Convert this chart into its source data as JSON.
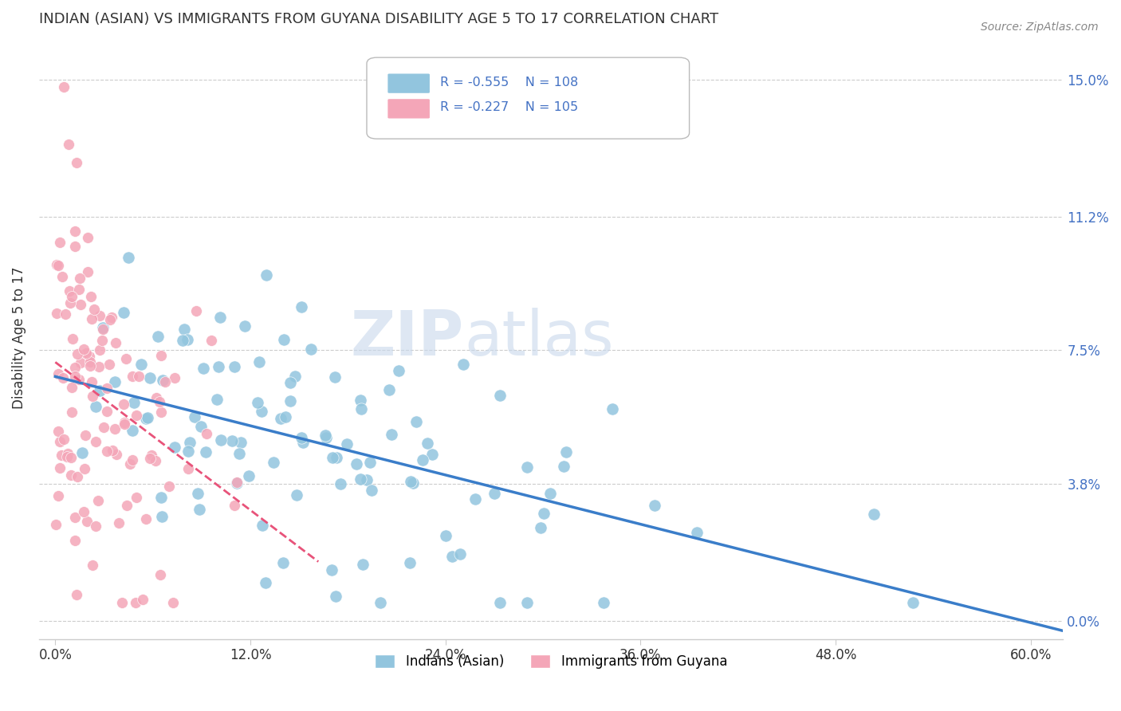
{
  "title": "INDIAN (ASIAN) VS IMMIGRANTS FROM GUYANA DISABILITY AGE 5 TO 17 CORRELATION CHART",
  "source": "Source: ZipAtlas.com",
  "xlabel_ticks": [
    "0.0%",
    "12.0%",
    "24.0%",
    "36.0%",
    "48.0%",
    "60.0%"
  ],
  "xlabel_vals": [
    0.0,
    0.12,
    0.24,
    0.36,
    0.48,
    0.6
  ],
  "ylabel": "Disability Age 5 to 17",
  "ytick_labels": [
    "0.0%",
    "3.8%",
    "7.5%",
    "11.2%",
    "15.0%"
  ],
  "ytick_vals": [
    0.0,
    0.038,
    0.075,
    0.112,
    0.15
  ],
  "blue_R": -0.555,
  "blue_N": 108,
  "pink_R": -0.227,
  "pink_N": 105,
  "blue_color": "#92C5DE",
  "pink_color": "#F4A6B8",
  "blue_line_color": "#3A7DC9",
  "pink_line_color": "#E8537A",
  "legend_blue_text_R": "-0.555",
  "legend_blue_text_N": "108",
  "legend_pink_text_R": "-0.227",
  "legend_pink_text_N": "105",
  "legend_label_blue": "Indians (Asian)",
  "legend_label_pink": "Immigrants from Guyana",
  "watermark_zip": "ZIP",
  "watermark_atlas": "atlas",
  "background_color": "#FFFFFF",
  "grid_color": "#CCCCCC",
  "axis_color": "#CCCCCC",
  "title_color": "#333333",
  "right_tick_color": "#4472C4",
  "source_color": "#888888"
}
